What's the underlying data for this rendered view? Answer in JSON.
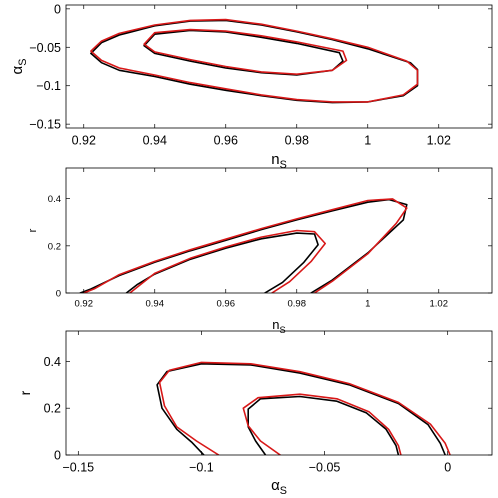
{
  "chart_data": [
    {
      "type": "line",
      "xlabel": "n",
      "xlabel_sub": "S",
      "ylabel": "α",
      "ylabel_sub": "S",
      "xlim": [
        0.915,
        1.035
      ],
      "ylim": [
        -0.155,
        0.005
      ],
      "xticks": [
        0.92,
        0.94,
        0.96,
        0.98,
        1,
        1.02
      ],
      "xtick_labels": [
        "0.92",
        "0.94",
        "0.96",
        "0.98",
        "1",
        "1.02"
      ],
      "yticks": [
        0,
        -0.05,
        -0.1,
        -0.15
      ],
      "ytick_labels": [
        "0",
        "−0.05",
        "−0.1",
        "−0.15"
      ],
      "grid": false,
      "series": [
        {
          "color": "#000000",
          "contour": "outer",
          "x": [
            0.922,
            0.925,
            0.93,
            0.94,
            0.95,
            0.96,
            0.97,
            0.98,
            0.99,
            1.0,
            1.01,
            1.014,
            1.014,
            1.012,
            1.0,
            0.99,
            0.98,
            0.97,
            0.96,
            0.95,
            0.94,
            0.93,
            0.925,
            0.922
          ],
          "y": [
            -0.058,
            -0.07,
            -0.08,
            -0.088,
            -0.098,
            -0.106,
            -0.113,
            -0.119,
            -0.122,
            -0.121,
            -0.113,
            -0.1,
            -0.079,
            -0.07,
            -0.052,
            -0.04,
            -0.03,
            -0.021,
            -0.015,
            -0.016,
            -0.022,
            -0.034,
            -0.044,
            -0.058
          ]
        },
        {
          "color": "#d81818",
          "contour": "outer",
          "x": [
            0.922,
            0.925,
            0.93,
            0.94,
            0.95,
            0.96,
            0.97,
            0.98,
            0.99,
            1.0,
            1.01,
            1.014,
            1.014,
            1.011,
            1.0,
            0.99,
            0.98,
            0.97,
            0.96,
            0.95,
            0.94,
            0.93,
            0.925,
            0.922
          ],
          "y": [
            -0.055,
            -0.067,
            -0.077,
            -0.086,
            -0.096,
            -0.104,
            -0.112,
            -0.118,
            -0.121,
            -0.121,
            -0.112,
            -0.098,
            -0.08,
            -0.068,
            -0.05,
            -0.039,
            -0.029,
            -0.02,
            -0.014,
            -0.015,
            -0.021,
            -0.032,
            -0.042,
            -0.055
          ]
        },
        {
          "color": "#000000",
          "contour": "inner",
          "x": [
            0.937,
            0.94,
            0.95,
            0.96,
            0.97,
            0.98,
            0.99,
            0.993,
            0.992,
            0.98,
            0.97,
            0.96,
            0.95,
            0.94,
            0.937
          ],
          "y": [
            -0.048,
            -0.058,
            -0.068,
            -0.077,
            -0.083,
            -0.086,
            -0.08,
            -0.068,
            -0.057,
            -0.045,
            -0.037,
            -0.03,
            -0.028,
            -0.033,
            -0.048
          ]
        },
        {
          "color": "#d81818",
          "contour": "inner",
          "x": [
            0.937,
            0.94,
            0.95,
            0.96,
            0.97,
            0.98,
            0.99,
            0.994,
            0.993,
            0.98,
            0.97,
            0.96,
            0.95,
            0.94,
            0.937
          ],
          "y": [
            -0.046,
            -0.056,
            -0.066,
            -0.075,
            -0.082,
            -0.085,
            -0.08,
            -0.067,
            -0.055,
            -0.043,
            -0.035,
            -0.029,
            -0.027,
            -0.031,
            -0.046
          ]
        }
      ]
    },
    {
      "type": "line",
      "xlabel": "n",
      "xlabel_sub": "S",
      "ylabel": "r",
      "xlim": [
        0.915,
        1.035
      ],
      "ylim": [
        0,
        0.53
      ],
      "xticks": [
        0.92,
        0.94,
        0.96,
        0.98,
        1,
        1.02
      ],
      "xtick_labels": [
        "0.92",
        "0.94",
        "0.96",
        "0.98",
        "1",
        "1.02"
      ],
      "yticks": [
        0,
        0.2,
        0.4
      ],
      "ytick_labels": [
        "0",
        "0.2",
        "0.4"
      ],
      "grid": false,
      "series": [
        {
          "color": "#000000",
          "contour": "outer",
          "x": [
            0.919,
            0.922,
            0.93,
            0.94,
            0.95,
            0.96,
            0.97,
            0.98,
            0.99,
            1.0,
            1.006,
            1.011,
            1.01,
            1.0,
            0.99,
            0.984
          ],
          "y": [
            0,
            0.017,
            0.074,
            0.13,
            0.179,
            0.223,
            0.269,
            0.31,
            0.348,
            0.385,
            0.396,
            0.375,
            0.31,
            0.17,
            0.055,
            0
          ]
        },
        {
          "color": "#d81818",
          "contour": "outer",
          "x": [
            0.92,
            0.923,
            0.93,
            0.94,
            0.95,
            0.96,
            0.97,
            0.98,
            0.99,
            1.0,
            1.007,
            1.011,
            1.008,
            1.0,
            0.99,
            0.985
          ],
          "y": [
            0,
            0.018,
            0.078,
            0.134,
            0.183,
            0.228,
            0.273,
            0.314,
            0.353,
            0.392,
            0.399,
            0.36,
            0.295,
            0.166,
            0.05,
            0
          ]
        },
        {
          "color": "#000000",
          "contour": "inner",
          "x": [
            0.932,
            0.935,
            0.94,
            0.95,
            0.96,
            0.97,
            0.98,
            0.985,
            0.986,
            0.982,
            0.976,
            0.971
          ],
          "y": [
            0,
            0.035,
            0.08,
            0.143,
            0.19,
            0.23,
            0.254,
            0.25,
            0.205,
            0.13,
            0.045,
            0
          ]
        },
        {
          "color": "#d81818",
          "contour": "inner",
          "x": [
            0.933,
            0.936,
            0.94,
            0.95,
            0.96,
            0.97,
            0.98,
            0.985,
            0.988,
            0.984,
            0.978,
            0.973
          ],
          "y": [
            0,
            0.036,
            0.083,
            0.147,
            0.195,
            0.237,
            0.265,
            0.26,
            0.21,
            0.133,
            0.048,
            0
          ]
        }
      ]
    },
    {
      "type": "line",
      "xlabel": "α",
      "xlabel_sub": "S",
      "ylabel": "r",
      "xlim": [
        -0.155,
        0.018
      ],
      "ylim": [
        0,
        0.53
      ],
      "xticks": [
        -0.15,
        -0.1,
        -0.05,
        0
      ],
      "xtick_labels": [
        "−0.15",
        "−0.1",
        "−0.05",
        "0"
      ],
      "yticks": [
        0,
        0.2,
        0.4
      ],
      "ytick_labels": [
        "0",
        "0.2",
        "0.4"
      ],
      "grid": false,
      "series": [
        {
          "color": "#000000",
          "contour": "outer",
          "x": [
            -0.099,
            -0.104,
            -0.11,
            -0.116,
            -0.118,
            -0.114,
            -0.1,
            -0.08,
            -0.06,
            -0.04,
            -0.02,
            -0.008,
            -0.003,
            -0.001
          ],
          "y": [
            0,
            0.055,
            0.11,
            0.2,
            0.3,
            0.357,
            0.39,
            0.385,
            0.35,
            0.3,
            0.22,
            0.13,
            0.05,
            0
          ]
        },
        {
          "color": "#d81818",
          "contour": "outer",
          "x": [
            -0.093,
            -0.102,
            -0.11,
            -0.115,
            -0.117,
            -0.113,
            -0.1,
            -0.08,
            -0.06,
            -0.04,
            -0.02,
            -0.007,
            -0.001,
            0.001
          ],
          "y": [
            0,
            0.06,
            0.12,
            0.21,
            0.31,
            0.362,
            0.396,
            0.39,
            0.356,
            0.305,
            0.225,
            0.132,
            0.05,
            0
          ]
        },
        {
          "color": "#000000",
          "contour": "inner",
          "x": [
            -0.074,
            -0.078,
            -0.081,
            -0.081,
            -0.076,
            -0.06,
            -0.045,
            -0.033,
            -0.025,
            -0.021,
            -0.02
          ],
          "y": [
            0,
            0.06,
            0.12,
            0.196,
            0.24,
            0.25,
            0.23,
            0.18,
            0.11,
            0.04,
            0
          ]
        },
        {
          "color": "#d81818",
          "contour": "inner",
          "x": [
            -0.068,
            -0.076,
            -0.081,
            -0.083,
            -0.077,
            -0.06,
            -0.045,
            -0.032,
            -0.024,
            -0.02,
            -0.019
          ],
          "y": [
            0,
            0.06,
            0.125,
            0.2,
            0.245,
            0.26,
            0.24,
            0.185,
            0.11,
            0.04,
            0
          ]
        }
      ]
    }
  ]
}
